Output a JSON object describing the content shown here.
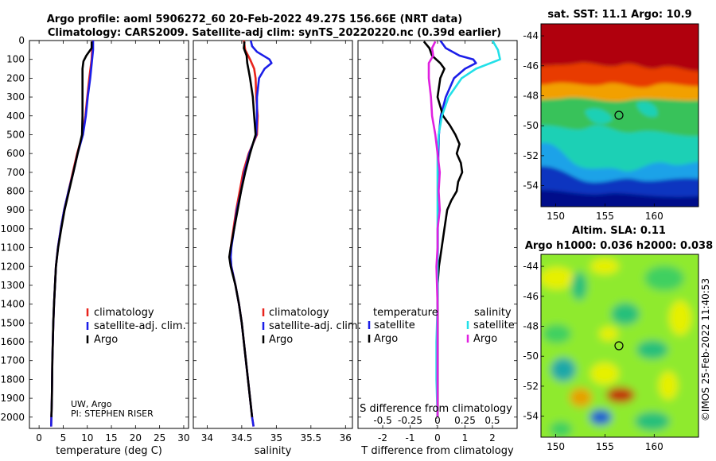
{
  "title": {
    "line1": "Argo profile: aoml 5906272_60 20-Feb-2022 49.27S 156.66E (NRT data)",
    "line2": "Climatology: CARS2009. Satellite-adj clim: synTS_20220220.nc (0.39d earlier)"
  },
  "depth_axis": {
    "ticks": [
      0,
      100,
      200,
      300,
      400,
      500,
      600,
      700,
      800,
      900,
      1000,
      1100,
      1200,
      1300,
      1400,
      1500,
      1600,
      1700,
      1800,
      1900,
      2000
    ],
    "range": [
      0,
      2060
    ]
  },
  "colors": {
    "climatology": "#e8231c",
    "satellite": "#1b1ee8",
    "argo": "#000000",
    "sat_salinity": "#22e0e8",
    "argo_salinity": "#e020e0"
  },
  "credit": {
    "line1": "UW, Argo",
    "line2": "PI: STEPHEN RISER"
  },
  "timestamp": "©IMOS 25-Feb-2022 11:40:53",
  "chart_data": [
    {
      "type": "line",
      "name": "temperature-profile",
      "xlabel": "temperature (deg C)",
      "xlim": [
        -2,
        31
      ],
      "xticks": [
        0,
        5,
        10,
        15,
        20,
        25,
        30
      ],
      "ylim": [
        0,
        2060
      ],
      "legend": [
        "climatology",
        "satellite-adj. clim.",
        "Argo"
      ],
      "legend_position": "middle-right",
      "series": [
        {
          "name": "climatology",
          "color": "#e8231c",
          "depth": [
            0,
            50,
            100,
            200,
            300,
            400,
            500,
            600,
            700,
            800,
            900,
            1000,
            1100,
            1200,
            1300,
            1400,
            1500,
            1600,
            1700,
            1800,
            1900,
            2000,
            2050
          ],
          "values": [
            11.1,
            11,
            10.9,
            10.4,
            10,
            9.6,
            9.0,
            7.9,
            7.0,
            6.1,
            5.2,
            4.5,
            3.9,
            3.5,
            3.3,
            3.1,
            2.95,
            2.85,
            2.75,
            2.7,
            2.65,
            2.55,
            2.5
          ]
        },
        {
          "name": "satellite-adj. clim.",
          "color": "#1b1ee8",
          "depth": [
            0,
            50,
            100,
            200,
            300,
            400,
            500,
            600,
            700,
            800,
            900,
            1000,
            1100,
            1200,
            1300,
            1400,
            1500,
            1600,
            1700,
            1800,
            1900,
            2000,
            2050
          ],
          "values": [
            11.2,
            11.2,
            11.0,
            10.6,
            10.1,
            9.7,
            9.1,
            8.0,
            7.1,
            6.1,
            5.2,
            4.5,
            3.9,
            3.5,
            3.3,
            3.1,
            2.95,
            2.85,
            2.75,
            2.7,
            2.65,
            2.55,
            2.5
          ]
        },
        {
          "name": "Argo",
          "color": "#000000",
          "depth": [
            5,
            40,
            80,
            110,
            150,
            200,
            300,
            400,
            500,
            600,
            700,
            800,
            900,
            1000,
            1100,
            1200,
            1300,
            1400,
            1500,
            1600,
            1700,
            1800,
            1900,
            2000
          ],
          "values": [
            10.9,
            10.9,
            9.8,
            9.2,
            9.0,
            9.0,
            9.0,
            9.0,
            8.9,
            8.0,
            7.1,
            6.2,
            5.3,
            4.6,
            3.95,
            3.5,
            3.3,
            3.1,
            2.95,
            2.85,
            2.75,
            2.7,
            2.65,
            2.55
          ]
        }
      ]
    },
    {
      "type": "line",
      "name": "salinity-profile",
      "xlabel": "salinity",
      "xlim": [
        33.8,
        36.1
      ],
      "xticks": [
        34,
        34.5,
        35,
        35.5,
        36
      ],
      "ylim": [
        0,
        2060
      ],
      "legend": [
        "climatology",
        "satellite-adj. clim.",
        "Argo"
      ],
      "legend_position": "middle-right",
      "series": [
        {
          "name": "climatology",
          "color": "#e8231c",
          "depth": [
            0,
            50,
            100,
            150,
            200,
            300,
            400,
            500,
            600,
            700,
            800,
            900,
            1000,
            1100,
            1150,
            1200,
            1300,
            1400,
            1500,
            1600,
            1700,
            1800,
            1900,
            2000,
            2050
          ],
          "values": [
            34.53,
            34.55,
            34.62,
            34.68,
            34.7,
            34.71,
            34.73,
            34.72,
            34.6,
            34.52,
            34.47,
            34.42,
            34.38,
            34.34,
            34.33,
            34.35,
            34.41,
            34.46,
            34.5,
            34.53,
            34.56,
            34.59,
            34.62,
            34.65,
            34.67
          ]
        },
        {
          "name": "satellite-adj. clim.",
          "color": "#1b1ee8",
          "depth": [
            0,
            30,
            60,
            100,
            120,
            150,
            200,
            300,
            400,
            500,
            600,
            700,
            800,
            900,
            1000,
            1100,
            1150,
            1200,
            1300,
            1400,
            1500,
            1600,
            1700,
            1800,
            1900,
            2000,
            2050
          ],
          "values": [
            34.63,
            34.65,
            34.72,
            34.9,
            34.93,
            34.83,
            34.75,
            34.72,
            34.72,
            34.71,
            34.61,
            34.54,
            34.49,
            34.43,
            34.39,
            34.35,
            34.34,
            34.35,
            34.41,
            34.46,
            34.5,
            34.53,
            34.56,
            34.59,
            34.62,
            34.65,
            34.67
          ]
        },
        {
          "name": "Argo",
          "color": "#000000",
          "depth": [
            5,
            40,
            80,
            120,
            160,
            200,
            300,
            400,
            500,
            600,
            700,
            800,
            900,
            1000,
            1100,
            1150,
            1200,
            1300,
            1400,
            1500,
            1600,
            1700,
            1800,
            1900,
            2000
          ],
          "values": [
            34.54,
            34.53,
            34.57,
            34.58,
            34.6,
            34.62,
            34.66,
            34.68,
            34.7,
            34.62,
            34.55,
            34.49,
            34.44,
            34.39,
            34.34,
            34.32,
            34.34,
            34.41,
            34.46,
            34.5,
            34.53,
            34.56,
            34.59,
            34.62,
            34.65
          ]
        }
      ]
    },
    {
      "type": "line",
      "name": "difference-profile",
      "xlabel": "T difference from climatology",
      "xlabel_top": "S difference from climatology",
      "xlim": [
        -2.9,
        2.9
      ],
      "xticks": [
        -2,
        -1,
        0,
        1,
        2
      ],
      "top_ticks": [
        -0.5,
        -0.25,
        0,
        0.25,
        0.5
      ],
      "top_tick_labels": [
        "-0.5",
        "-0.25",
        "0",
        "0.25",
        "0.5"
      ],
      "ylim": [
        0,
        2060
      ],
      "legend_temperature": {
        "title": "temperature",
        "items": [
          "satellite",
          "Argo"
        ]
      },
      "legend_salinity": {
        "title": "salinity",
        "items": [
          "satellite",
          "Argo"
        ]
      },
      "series": [
        {
          "name": "T satellite",
          "color": "#1b1ee8",
          "depth": [
            0,
            40,
            80,
            100,
            120,
            150,
            200,
            300,
            400,
            500,
            600,
            700,
            800,
            900,
            1000,
            1100,
            1200,
            1400,
            1600,
            1800,
            2000
          ],
          "values": [
            0.1,
            0.3,
            0.8,
            1.3,
            1.4,
            1.0,
            0.6,
            0.3,
            0.12,
            0.05,
            0.03,
            0.02,
            0.02,
            0.02,
            0.01,
            0.01,
            0.0,
            0.0,
            0.0,
            0.0,
            0.0
          ]
        },
        {
          "name": "T Argo",
          "color": "#000000",
          "depth": [
            5,
            40,
            80,
            120,
            150,
            200,
            300,
            400,
            450,
            500,
            550,
            600,
            650,
            700,
            750,
            800,
            850,
            900,
            1000,
            1100,
            1200,
            1300,
            1400,
            1500,
            1600,
            1800,
            2000
          ],
          "values": [
            -0.5,
            -0.3,
            -0.2,
            0.1,
            0.25,
            0.1,
            0.0,
            0.2,
            0.45,
            0.65,
            0.8,
            0.7,
            0.85,
            0.9,
            0.75,
            0.7,
            0.5,
            0.35,
            0.25,
            0.15,
            0.05,
            0.0,
            0.0,
            0.0,
            0.0,
            0.0,
            0.0
          ]
        },
        {
          "name": "S satellite",
          "color": "#22e0e8",
          "depth": [
            0,
            50,
            100,
            150,
            200,
            300,
            400,
            500,
            600,
            700,
            800,
            1000,
            1200,
            1400,
            1600,
            1800,
            2000
          ],
          "values": [
            0.5,
            0.55,
            0.57,
            0.35,
            0.22,
            0.1,
            0.04,
            0.01,
            0.0,
            0.0,
            0.0,
            0.0,
            0.0,
            0.0,
            -0.01,
            -0.01,
            0.0
          ]
        },
        {
          "name": "S Argo",
          "color": "#e020e0",
          "depth": [
            5,
            40,
            80,
            120,
            200,
            300,
            400,
            500,
            600,
            700,
            800,
            900,
            1000,
            1100,
            1200,
            1400,
            1600,
            1800,
            2000
          ],
          "values": [
            -0.02,
            -0.05,
            -0.04,
            -0.08,
            -0.08,
            -0.06,
            -0.05,
            -0.02,
            0.0,
            0.02,
            0.01,
            0.02,
            0.0,
            0.0,
            -0.01,
            0.0,
            0.0,
            0.0,
            0.0
          ]
        }
      ]
    },
    {
      "type": "heatmap",
      "name": "sst-map",
      "title": "sat. SST: 11.1 Argo: 10.9",
      "xticks": [
        150,
        155,
        160
      ],
      "yticks": [
        -44,
        -46,
        -48,
        -50,
        -52,
        -54
      ],
      "xlim": [
        148.5,
        164.5
      ],
      "ylim": [
        -55.4,
        -43.2
      ],
      "marker": {
        "lon": 156.66,
        "lat": -49.27
      }
    },
    {
      "type": "heatmap",
      "name": "sla-map",
      "title_line1": "Altim. SLA: 0.11",
      "title_line2": "Argo h1000: 0.036 h2000: 0.038",
      "xticks": [
        150,
        155,
        160
      ],
      "yticks": [
        -44,
        -46,
        -48,
        -50,
        -52,
        -54
      ],
      "xlim": [
        148.5,
        164.5
      ],
      "ylim": [
        -55.4,
        -43.2
      ],
      "marker": {
        "lon": 156.66,
        "lat": -49.27
      }
    }
  ]
}
